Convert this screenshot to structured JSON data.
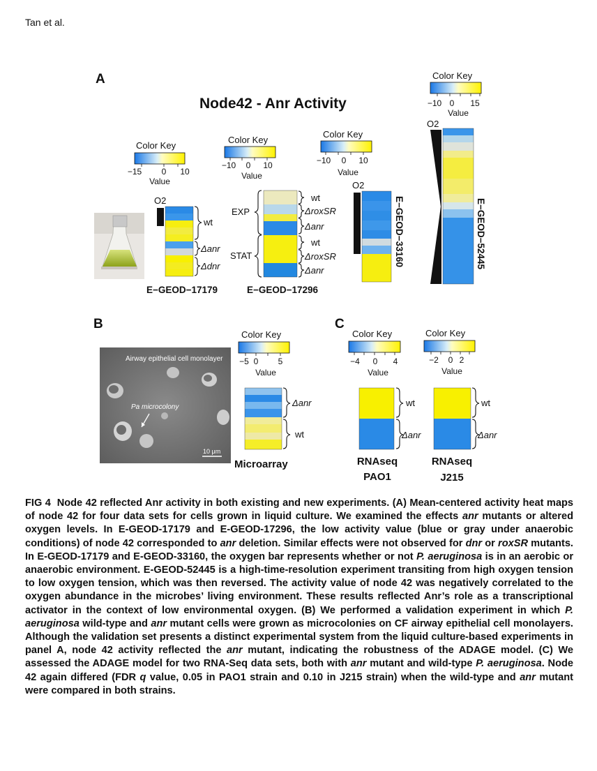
{
  "running_head": "Tan et al.",
  "panel_a": {
    "label": "A",
    "title": "Node42 - Anr Activity",
    "color_key_title": "Color Key",
    "value_label": "Value",
    "o2_label": "O2",
    "key_17179_ticks": [
      "−15",
      "0",
      "10"
    ],
    "key_17296_ticks": [
      "−10",
      "0",
      "10"
    ],
    "key_33160_ticks": [
      "−10",
      "0",
      "10"
    ],
    "key_52445_ticks": [
      "−10",
      "0",
      "15"
    ],
    "ds_17179": "E−GEOD−17179",
    "ds_17296": "E−GEOD−17296",
    "ds_33160": "E−GEOD−33160",
    "ds_52445": "E−GEOD−52445",
    "g17179_wt": "wt",
    "g17179_anr": "Δanr",
    "g17179_dnr": "Δdnr",
    "g17296_exp": "EXP",
    "g17296_stat": "STAT",
    "g17296_wt1": "wt",
    "g17296_rox1": "ΔroxSR",
    "g17296_anr1": "Δanr",
    "g17296_wt2": "wt",
    "g17296_rox2": "ΔroxSR",
    "g17296_anr2": "Δanr"
  },
  "panel_b": {
    "label": "B",
    "photo_title": "Airway epithelial cell monolayer",
    "photo_arrow": "Pa microcolony",
    "scale_bar": "10 μm",
    "key_ticks": [
      "−5",
      "0",
      "5"
    ],
    "g_anr": "Δanr",
    "g_wt": "wt",
    "dataset": "Microarray"
  },
  "panel_c": {
    "label": "C",
    "pao1_ticks": [
      "−4",
      "0",
      "4"
    ],
    "j215_ticks": [
      "−2",
      "0",
      "2"
    ],
    "pao1_wt": "wt",
    "pao1_anr": "Δanr",
    "j215_wt": "wt",
    "j215_anr": "Δanr",
    "pao1_l1": "RNAseq",
    "pao1_l2": "PAO1",
    "j215_l1": "RNAseq",
    "j215_l2": "J215"
  },
  "caption": {
    "fig": "FIG 4",
    "p1": "Node 42 reflected Anr activity in both existing and new experiments. (A) Mean-centered activity heat maps of node 42 for four data sets for cells grown in liquid culture. We examined the effects ",
    "i1": "anr",
    "p2": " mutants or altered oxygen levels. In E-GEOD-17179 and E-GEOD-17296, the low activity value (blue or gray under anaerobic conditions) of node 42 corresponded to ",
    "i2": "anr",
    "p3": " deletion. Similar effects were not observed for ",
    "i3": "dnr",
    "p4": " or ",
    "i4": "roxSR",
    "p5": " mutants. In E-GEOD-17179 and E-GEOD-33160, the oxygen bar represents whether or not ",
    "i5": "P. aeruginosa",
    "p6": " is in an aerobic or anaerobic environment. E-GEOD-52445 is a high-time-resolution experiment transiting from high oxygen tension to low oxygen tension, which was then reversed. The activity value of node 42 was negatively correlated to the oxygen abundance in the microbes’ living environment. These results reflected Anr’s role as a transcriptional activator in the context of low environmental oxygen. (B) We performed a validation experiment in which ",
    "i6": "P. aeruginosa",
    "p7": " wild-type and ",
    "i7": "anr",
    "p8": " mutant cells were grown as microcolonies on CF airway epithelial cell monolayers. Although the validation set presents a distinct experimental system from the liquid culture-based experiments in panel A, node 42 activity reflected the ",
    "i8": "anr",
    "p9": " mutant, indicating the robustness of the ADAGE model. (C) We assessed the ADAGE model for two RNA-Seq data sets, both with ",
    "i9": "anr",
    "p10": " mutant and wild-type ",
    "i10": "P. aeruginosa",
    "p11": ". Node 42 again differed (FDR ",
    "i11": "q",
    "p12": " value, 0.05 in PAO1 strain and 0.10 in J215 strain) when the wild-type and ",
    "i12": "anr",
    "p13": " mutant were compared in both strains."
  }
}
